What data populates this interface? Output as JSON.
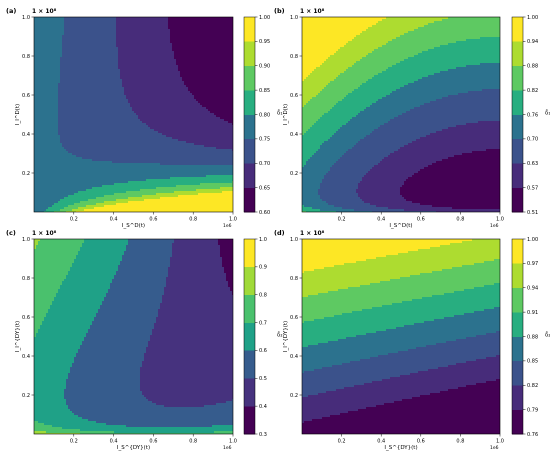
{
  "chart_data": [
    {
      "type": "heatmap",
      "panel_label": "(a)",
      "scale_note": "1 × 10⁸",
      "x_unit_note": "1e6",
      "xlabel": "I_S^D(t)",
      "ylabel": "I_I^D(t)",
      "cbar_label": "δ̄₁",
      "xlim": [
        0,
        1.0
      ],
      "ylim": [
        0,
        1.0
      ],
      "x_ticks": [
        "0.2",
        "0.4",
        "0.6",
        "0.8",
        "1.0"
      ],
      "y_ticks": [
        "0.2",
        "0.4",
        "0.6",
        "0.8",
        "1.0"
      ],
      "levels": [
        0.6,
        0.65,
        0.7,
        0.75,
        0.8,
        0.85,
        0.9,
        0.95,
        1.0
      ],
      "cbar_ticks": [
        "0.60",
        "0.65",
        "0.70",
        "0.75",
        "0.80",
        "0.85",
        "0.90",
        "0.95",
        "1.00"
      ],
      "colors": [
        "#440154",
        "#472c7a",
        "#3b528b",
        "#2c728e",
        "#21918c",
        "#28ae80",
        "#5ec962",
        "#addc30",
        "#fde725"
      ],
      "contour_model": "value = 0.75 + 0.12*x/(1.5*y + 0.09) - 0.27*x + 0.03*y"
    },
    {
      "type": "heatmap",
      "panel_label": "(b)",
      "scale_note": "1 × 10⁸",
      "x_unit_note": "1e6",
      "xlabel": "I_S^D(t)",
      "ylabel": "I_I^D(t)",
      "cbar_label": "δ̄₁",
      "xlim": [
        0,
        1.0
      ],
      "ylim": [
        0,
        1.0
      ],
      "x_ticks": [
        "0.2",
        "0.4",
        "0.6",
        "0.8",
        "1.0"
      ],
      "y_ticks": [
        "0.2",
        "0.4",
        "0.6",
        "0.8",
        "1.0"
      ],
      "levels": [
        0.51,
        0.57,
        0.63,
        0.7,
        0.76,
        0.82,
        0.88,
        0.94,
        1.0
      ],
      "cbar_ticks": [
        "0.51",
        "0.57",
        "0.63",
        "0.70",
        "0.76",
        "0.82",
        "0.88",
        "0.94",
        "1.00"
      ],
      "colors": [
        "#440154",
        "#472c7a",
        "#3b528b",
        "#2c728e",
        "#21918c",
        "#28ae80",
        "#5ec962",
        "#addc30",
        "#fde725"
      ],
      "contour_model": "value = 0.53 + 0.47*y - 0.18*x + 0.22*(x-0.6)^2 + 0.012/(y+0.05)"
    },
    {
      "type": "heatmap",
      "panel_label": "(c)",
      "scale_note": "1 × 10⁸",
      "x_unit_note": "1e6",
      "xlabel": "I_S^{DY}(t)",
      "ylabel": "I_I^{DY}(t)",
      "cbar_label": "δ̄₂",
      "xlim": [
        0,
        1.0
      ],
      "ylim": [
        0,
        1.0
      ],
      "x_ticks": [
        "0.2",
        "0.4",
        "0.6",
        "0.8",
        "1.0"
      ],
      "y_ticks": [
        "0.2",
        "0.4",
        "0.6",
        "0.8",
        "1.0"
      ],
      "levels": [
        0.3,
        0.4,
        0.5,
        0.6,
        0.7,
        0.8,
        0.9,
        1.0
      ],
      "cbar_ticks": [
        "0.3",
        "0.4",
        "0.5",
        "0.6",
        "0.7",
        "0.8",
        "0.9",
        "1.0"
      ],
      "colors": [
        "#440154",
        "#46327e",
        "#365c8d",
        "#277f8e",
        "#1fa187",
        "#4ac16d",
        "#a0da39",
        "#fde725"
      ],
      "contour_model": "value = 0.55 + 0.25*y - 0.45*x + 0.35*(1-y)*x^2 + 0.015/(y+0.04)"
    },
    {
      "type": "heatmap",
      "panel_label": "(d)",
      "scale_note": "1 × 10⁸",
      "x_unit_note": "1e6",
      "xlabel": "I_S^{DY}(t)",
      "ylabel": "I_I^{DY}(t)",
      "cbar_label": "δ̄₂",
      "xlim": [
        0,
        1.0
      ],
      "ylim": [
        0,
        1.0
      ],
      "x_ticks": [
        "0.2",
        "0.4",
        "0.6",
        "0.8",
        "1.0"
      ],
      "y_ticks": [
        "0.2",
        "0.4",
        "0.6",
        "0.8",
        "1.0"
      ],
      "levels": [
        0.76,
        0.79,
        0.82,
        0.85,
        0.88,
        0.91,
        0.94,
        0.97,
        1.0
      ],
      "cbar_ticks": [
        "0.76",
        "0.79",
        "0.82",
        "0.85",
        "0.88",
        "0.91",
        "0.94",
        "0.97",
        "1.00"
      ],
      "colors": [
        "#440154",
        "#472c7a",
        "#3b528b",
        "#2c728e",
        "#21918c",
        "#28ae80",
        "#5ec962",
        "#addc30",
        "#fde725"
      ],
      "contour_model": "value = 0.775 + 0.235*y - 0.055*x + 0.01*y*x"
    }
  ]
}
